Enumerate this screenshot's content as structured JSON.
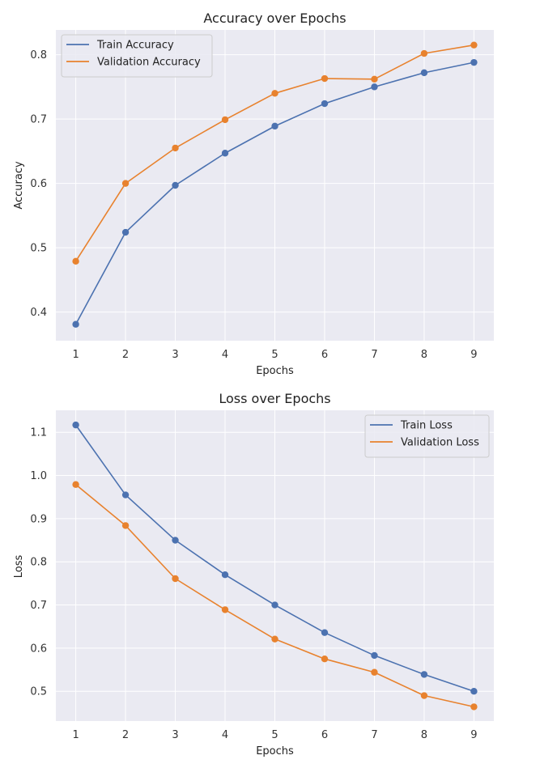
{
  "chart_data": [
    {
      "type": "line",
      "title": "Accuracy over Epochs",
      "xlabel": "Epochs",
      "ylabel": "Accuracy",
      "x": [
        1,
        2,
        3,
        4,
        5,
        6,
        7,
        8,
        9
      ],
      "xticks": [
        "1",
        "2",
        "3",
        "4",
        "5",
        "6",
        "7",
        "8",
        "9"
      ],
      "yticks": [
        "0.4",
        "0.5",
        "0.6",
        "0.7",
        "0.8"
      ],
      "xlim": [
        0.6,
        9.4
      ],
      "ylim": [
        0.3555,
        0.8385
      ],
      "grid": true,
      "legend_position": "top-left",
      "series": [
        {
          "name": "Train Accuracy",
          "color": "#4c72b0",
          "values": [
            0.381,
            0.524,
            0.597,
            0.647,
            0.689,
            0.724,
            0.75,
            0.772,
            0.788
          ]
        },
        {
          "name": "Validation Accuracy",
          "color": "#e8822e",
          "values": [
            0.479,
            0.6,
            0.655,
            0.699,
            0.74,
            0.763,
            0.762,
            0.802,
            0.815
          ]
        }
      ]
    },
    {
      "type": "line",
      "title": "Loss over Epochs",
      "xlabel": "Epochs",
      "ylabel": "Loss",
      "x": [
        1,
        2,
        3,
        4,
        5,
        6,
        7,
        8,
        9
      ],
      "xticks": [
        "1",
        "2",
        "3",
        "4",
        "5",
        "6",
        "7",
        "8",
        "9"
      ],
      "yticks": [
        "0.5",
        "0.6",
        "0.7",
        "0.8",
        "0.9",
        "1.0",
        "1.1"
      ],
      "xlim": [
        0.6,
        9.4
      ],
      "ylim": [
        0.431,
        1.151
      ],
      "grid": true,
      "legend_position": "top-right",
      "series": [
        {
          "name": "Train Loss",
          "color": "#4c72b0",
          "values": [
            1.117,
            0.955,
            0.85,
            0.77,
            0.7,
            0.636,
            0.583,
            0.539,
            0.5
          ]
        },
        {
          "name": "Validation Loss",
          "color": "#e8822e",
          "values": [
            0.979,
            0.884,
            0.761,
            0.689,
            0.621,
            0.575,
            0.544,
            0.49,
            0.464
          ]
        }
      ]
    }
  ]
}
